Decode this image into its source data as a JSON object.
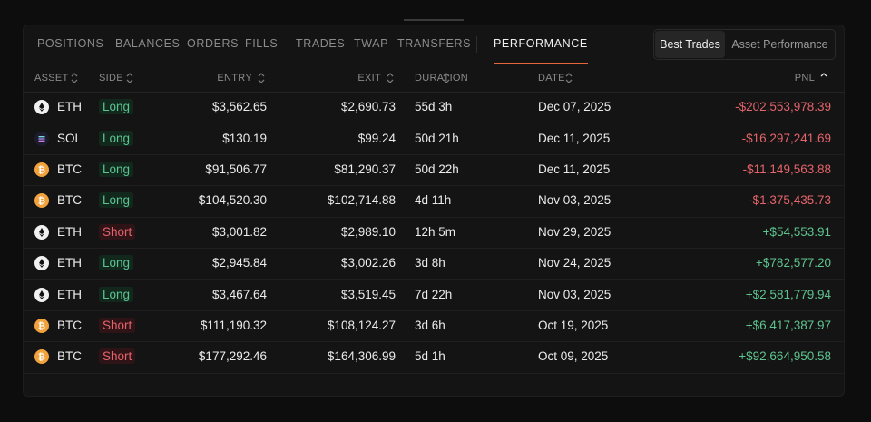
{
  "tabs": [
    "POSITIONS",
    "BALANCES",
    "ORDERS",
    "FILLS",
    "TRADES",
    "TWAP",
    "TRANSFERS",
    "PERFORMANCE"
  ],
  "active_tab": 7,
  "toggle": [
    "Best Trades",
    "Asset Performance"
  ],
  "active_toggle": 0,
  "table": {
    "headers": [
      "ASSET",
      "SIDE",
      "ENTRY",
      "EXIT",
      "DURATION",
      "DATE",
      "PNL"
    ],
    "rows": [
      {
        "asset": "ETH",
        "side": "Long",
        "entry": "$3,562.65",
        "exit": "$2,690.73",
        "duration": "55d 3h",
        "date": "Dec 07, 2025",
        "pnl": "-$202,553,978.39"
      },
      {
        "asset": "SOL",
        "side": "Long",
        "entry": "$130.19",
        "exit": "$99.24",
        "duration": "50d 21h",
        "date": "Dec 11, 2025",
        "pnl": "-$16,297,241.69"
      },
      {
        "asset": "BTC",
        "side": "Long",
        "entry": "$91,506.77",
        "exit": "$81,290.37",
        "duration": "50d 22h",
        "date": "Dec 11, 2025",
        "pnl": "-$11,149,563.88"
      },
      {
        "asset": "BTC",
        "side": "Long",
        "entry": "$104,520.30",
        "exit": "$102,714.88",
        "duration": "4d 11h",
        "date": "Nov 03, 2025",
        "pnl": "-$1,375,435.73"
      },
      {
        "asset": "ETH",
        "side": "Short",
        "entry": "$3,001.82",
        "exit": "$2,989.10",
        "duration": "12h 5m",
        "date": "Nov 29, 2025",
        "pnl": "+$54,553.91"
      },
      {
        "asset": "ETH",
        "side": "Long",
        "entry": "$2,945.84",
        "exit": "$3,002.26",
        "duration": "3d 8h",
        "date": "Nov 24, 2025",
        "pnl": "+$782,577.20"
      },
      {
        "asset": "ETH",
        "side": "Long",
        "entry": "$3,467.64",
        "exit": "$3,519.45",
        "duration": "7d 22h",
        "date": "Nov 03, 2025",
        "pnl": "+$2,581,779.94"
      },
      {
        "asset": "BTC",
        "side": "Short",
        "entry": "$111,190.32",
        "exit": "$108,124.27",
        "duration": "3d 6h",
        "date": "Oct 19, 2025",
        "pnl": "+$6,417,387.97"
      },
      {
        "asset": "BTC",
        "side": "Short",
        "entry": "$177,292.46",
        "exit": "$164,306.99",
        "duration": "5d 1h",
        "date": "Oct 09, 2025",
        "pnl": "+$92,664,950.58"
      }
    ]
  },
  "side_colors": {
    "Long": {
      "text": "#5cc491",
      "bg": "#12281d"
    },
    "Short": {
      "text": "#e5646b",
      "bg": "#2e1417"
    }
  },
  "pnl_colors": {
    "-": "#e5646b",
    "+": "#5fc48f"
  },
  "asset_colors": {
    "ETH": "#f1f1f1",
    "SOL": "#1c1c2c",
    "BTC": "#f2a23c"
  }
}
